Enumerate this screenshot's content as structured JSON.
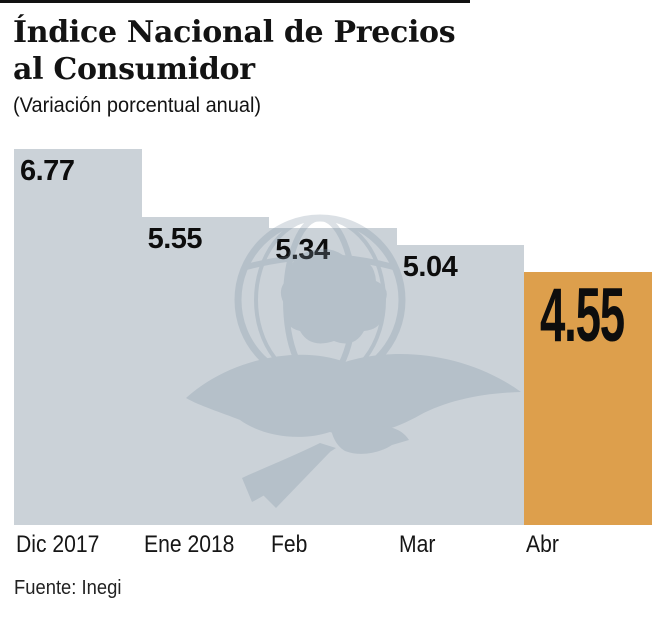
{
  "header": {
    "title_line1": "Índice Nacional de Precios",
    "title_line2": "al Consumidor",
    "subtitle": "(Variación porcentual anual)"
  },
  "chart_data": {
    "type": "bar",
    "variant": "contiguous-step-bars",
    "title": "Índice Nacional de Precios al Consumidor",
    "subtitle": "(Variación porcentual anual)",
    "categories": [
      "Dic 2017",
      "Ene 2018",
      "Feb",
      "Mar",
      "Abr"
    ],
    "values": [
      6.77,
      5.55,
      5.34,
      5.04,
      4.55
    ],
    "value_labels": [
      "6.77",
      "5.55",
      "5.34",
      "5.04",
      "4.55"
    ],
    "highlight_index": 4,
    "xlabel": "",
    "ylabel": "Variación porcentual anual (%)",
    "ylim": [
      0,
      6.77
    ],
    "grid": false,
    "legend": "none",
    "colors": {
      "bar": "#cbd2d8",
      "highlight": "#dd9f4c",
      "label_text": "#0d0d0d"
    }
  },
  "watermark": {
    "icon": "eagle-globe-watermark",
    "color": "#7f93a3"
  },
  "footer": {
    "source": "Fuente: Inegi"
  },
  "decor": {
    "top_rule_color": "#111111"
  }
}
